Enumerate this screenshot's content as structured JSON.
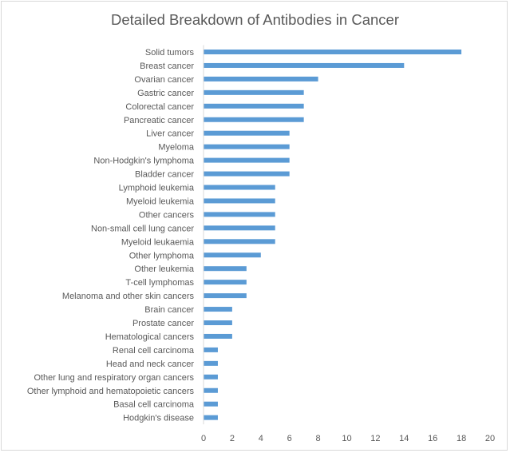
{
  "chart_data": {
    "type": "bar",
    "orientation": "horizontal",
    "title": "Detailed Breakdown of Antibodies in Cancer",
    "xlabel": "",
    "ylabel": "",
    "xlim": [
      0,
      20
    ],
    "x_ticks": [
      "0",
      "2",
      "4",
      "6",
      "8",
      "10",
      "12",
      "14",
      "16",
      "18",
      "20"
    ],
    "grid": false,
    "legend": "none",
    "bar_color": "#5b9bd5",
    "categories": [
      "Solid tumors",
      "Breast cancer",
      "Ovarian cancer",
      "Gastric cancer",
      "Colorectal cancer",
      "Pancreatic cancer",
      "Liver cancer",
      "Myeloma",
      "Non-Hodgkin's lymphoma",
      "Bladder cancer",
      "Lymphoid leukemia",
      "Myeloid leukemia",
      "Other cancers",
      "Non-small cell lung cancer",
      "Myeloid leukaemia",
      "Other lymphoma",
      "Other leukemia",
      "T-cell lymphomas",
      "Melanoma and other skin cancers",
      "Brain cancer",
      "Prostate cancer",
      "Hematological cancers",
      "Renal cell carcinoma",
      "Head and neck cancer",
      "Other lung and respiratory organ cancers",
      "Other lymphoid and hematopoietic cancers",
      "Basal cell carcinoma",
      "Hodgkin's disease"
    ],
    "values": [
      18,
      14,
      8,
      7,
      7,
      7,
      6,
      6,
      6,
      6,
      5,
      5,
      5,
      5,
      5,
      4,
      3,
      3,
      3,
      2,
      2,
      2,
      1,
      1,
      1,
      1,
      1,
      1
    ]
  }
}
